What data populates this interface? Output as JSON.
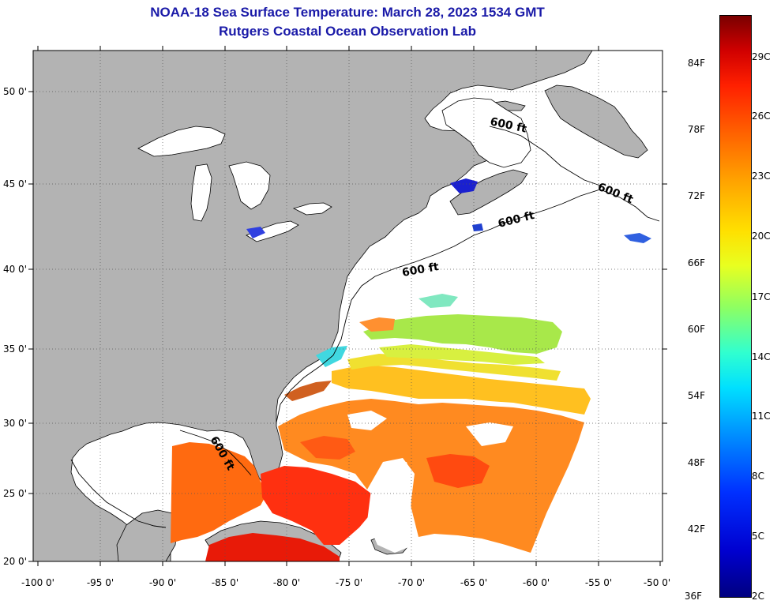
{
  "title_line1": "NOAA-18 Sea Surface Temperature:  March 28, 2023 1534 GMT",
  "title_line2": "Rutgers Coastal Ocean Observation Lab",
  "colors": {
    "land": "#b3b3b3",
    "water": "#ffffff",
    "title": "#1a1aa8",
    "coastline": "#000000"
  },
  "lat_labels": [
    "50 0'",
    "45 0'",
    "40 0'",
    "35 0'",
    "30 0'",
    "25 0'",
    "20 0'"
  ],
  "lon_labels": [
    "-100 0'",
    "-95 0'",
    "-90 0'",
    "-85 0'",
    "-80 0'",
    "-75 0'",
    "-70 0'",
    "-65 0'",
    "-60 0'",
    "-55 0'",
    "-50 0'"
  ],
  "depth_labels": [
    "600 ft",
    "600 ft",
    "600 ft",
    "600 ft",
    "600 ft"
  ],
  "colorbar": {
    "fahrenheit": [
      "84F",
      "78F",
      "72F",
      "66F",
      "60F",
      "54F",
      "48F",
      "42F",
      "36F"
    ],
    "celsius": [
      "29C",
      "26C",
      "23C",
      "20C",
      "17C",
      "14C",
      "11C",
      "8C",
      "5C",
      "2C"
    ],
    "gradient_colors": [
      "#000080",
      "#0000ff",
      "#00aaff",
      "#00ffff",
      "#80ff80",
      "#ffff00",
      "#ff8000",
      "#ff0000",
      "#800000"
    ]
  }
}
